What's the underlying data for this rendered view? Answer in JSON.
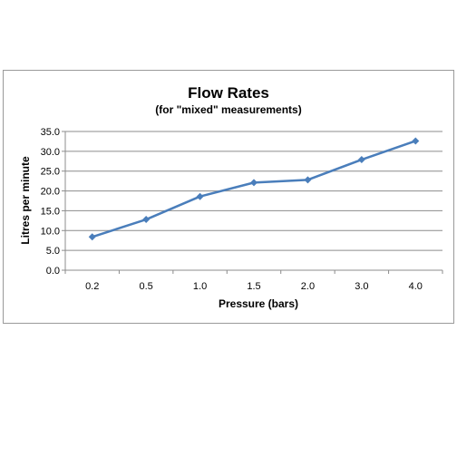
{
  "chart_data": {
    "type": "line",
    "title": "Flow Rates",
    "subtitle": "(for \"mixed\" measurements)",
    "xlabel": "Pressure (bars)",
    "ylabel": "Litres per minute",
    "categories": [
      "0.2",
      "0.5",
      "1.0",
      "1.5",
      "2.0",
      "3.0",
      "4.0"
    ],
    "series": [
      {
        "values": [
          8.4,
          12.8,
          18.6,
          22.1,
          22.8,
          27.9,
          32.6
        ]
      }
    ],
    "ylim": [
      0,
      35
    ],
    "yticks": [
      "0.0",
      "5.0",
      "10.0",
      "15.0",
      "20.0",
      "25.0",
      "30.0",
      "35.0"
    ],
    "grid": true,
    "legend": "none",
    "colors": {
      "line": "#4a7ebb",
      "grid": "#8c8c8c",
      "axis": "#8c8c8c"
    }
  }
}
